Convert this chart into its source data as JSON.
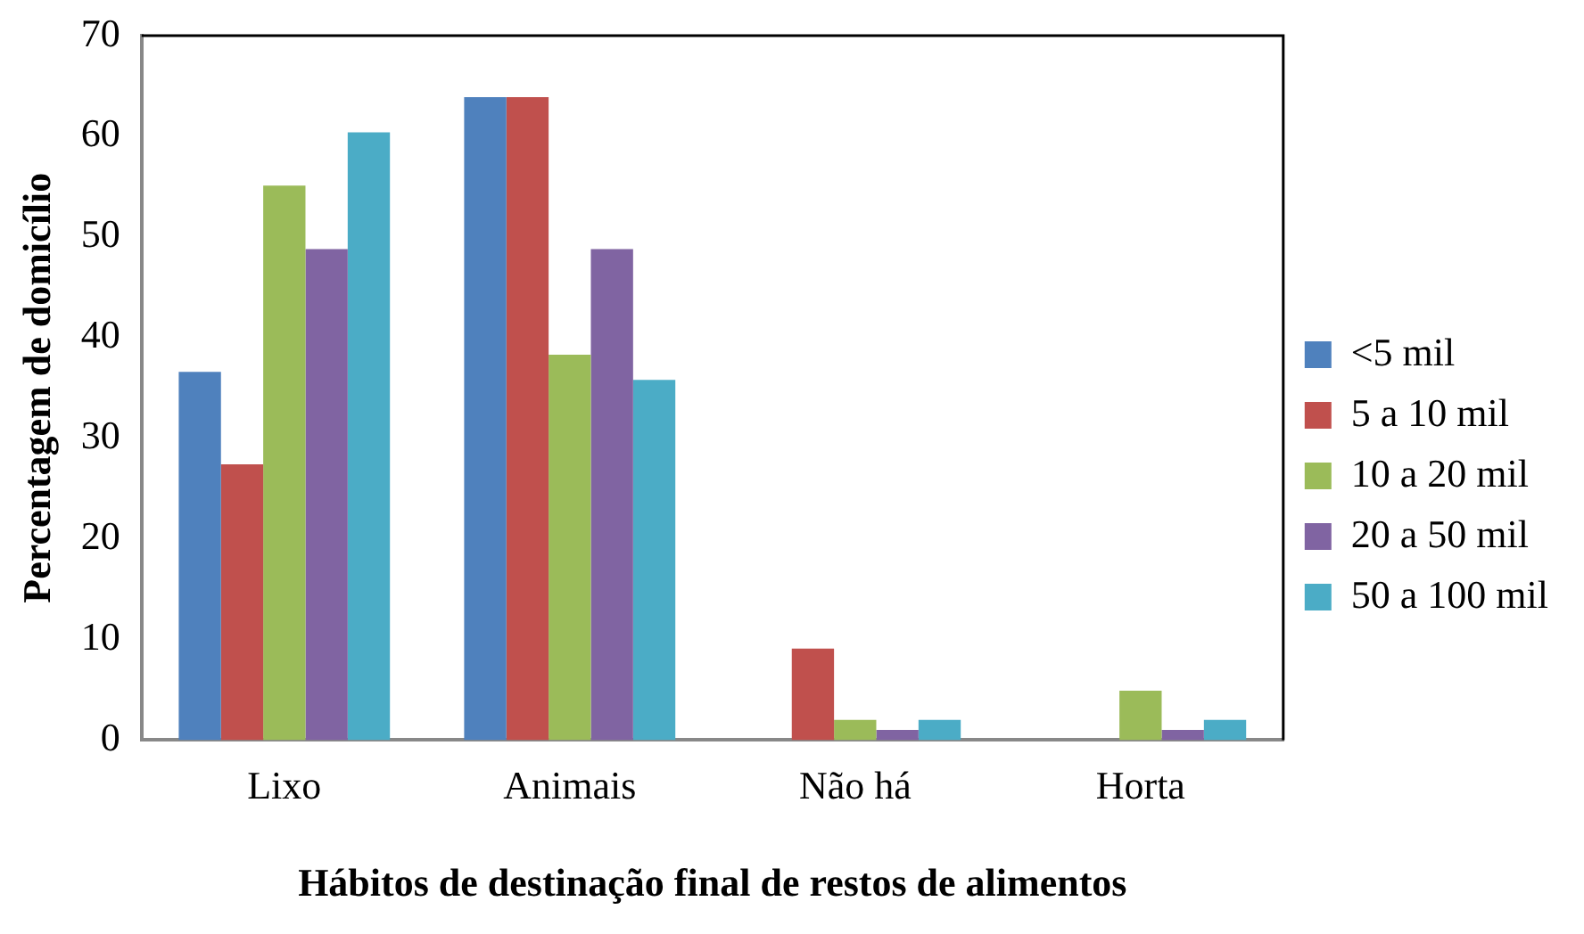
{
  "chart_data": {
    "type": "bar",
    "xlabel": "Hábitos de destinação final de restos de alimentos",
    "ylabel": "Percentagem de domicílio",
    "categories": [
      "Lixo",
      "Animais",
      "Não há",
      "Horta"
    ],
    "series": [
      {
        "name": "<5 mil",
        "color": "#4f81bd",
        "values": [
          36.6,
          63.9,
          0,
          0
        ]
      },
      {
        "name": "5 a 10 mil",
        "color": "#c0504d",
        "values": [
          27.4,
          63.9,
          9.1,
          0
        ]
      },
      {
        "name": "10 a 20 mil",
        "color": "#9bbb59",
        "values": [
          55.1,
          38.3,
          2.0,
          4.9
        ]
      },
      {
        "name": "20 a 50 mil",
        "color": "#8064a2",
        "values": [
          48.8,
          48.8,
          1.0,
          1.0
        ]
      },
      {
        "name": "50 a 100 mil",
        "color": "#4bacc6",
        "values": [
          60.4,
          35.8,
          2.0,
          2.0
        ]
      }
    ],
    "ylim": [
      0,
      70
    ],
    "yticks": [
      0,
      10,
      20,
      30,
      40,
      50,
      60,
      70
    ],
    "grid": false,
    "legend": "right"
  }
}
